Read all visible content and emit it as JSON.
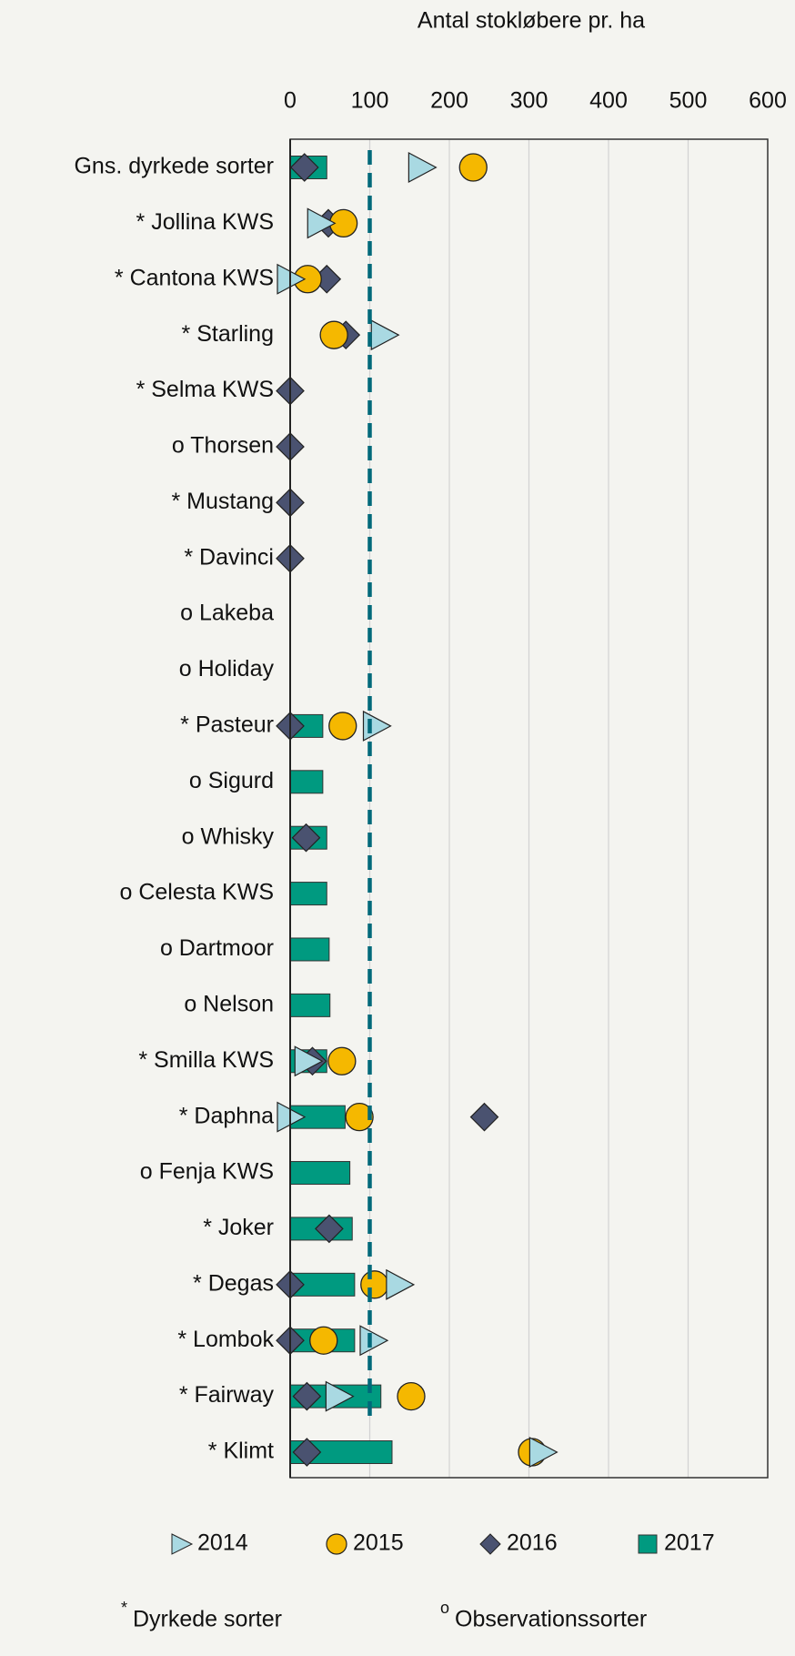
{
  "chart_data": {
    "type": "dot",
    "title": "Antal stokløbere pr. ha",
    "categories": [
      "Gns. dyrkede sorter",
      "* Jollina KWS",
      "* Cantona KWS",
      "* Starling",
      "* Selma KWS",
      "o Thorsen",
      "* Mustang",
      "* Davinci",
      "o Lakeba",
      "o Holiday",
      "* Pasteur",
      "o Sigurd",
      "o Whisky",
      "o Celesta KWS",
      "o Dartmoor",
      "o Nelson",
      "* Smilla KWS",
      "* Daphna",
      "o Fenja KWS",
      "* Joker",
      "* Degas",
      "* Lombok",
      "* Fairway",
      "* Klimt"
    ],
    "series": [
      {
        "name": "2014",
        "marker": "triangle",
        "color": "#a9d9e2",
        "values": [
          165,
          38,
          0,
          118,
          null,
          null,
          null,
          null,
          null,
          null,
          108,
          null,
          null,
          null,
          null,
          null,
          22,
          0,
          null,
          null,
          137,
          104,
          61,
          317
        ]
      },
      {
        "name": "2015",
        "marker": "circle",
        "color": "#f5b800",
        "values": [
          230,
          67,
          22,
          55,
          null,
          null,
          null,
          null,
          null,
          null,
          66,
          null,
          null,
          null,
          null,
          null,
          65,
          87,
          null,
          null,
          106,
          42,
          152,
          304
        ]
      },
      {
        "name": "2016",
        "marker": "diamond",
        "color": "#4a5270",
        "values": [
          18,
          48,
          46,
          70,
          0,
          0,
          0,
          0,
          null,
          null,
          0,
          null,
          20,
          null,
          null,
          null,
          28,
          244,
          null,
          49,
          0,
          0,
          21,
          21
        ]
      },
      {
        "name": "2017",
        "marker": "bar",
        "color": "#009a80",
        "values": [
          46,
          null,
          null,
          null,
          null,
          null,
          null,
          null,
          null,
          null,
          41,
          41,
          46,
          46,
          49,
          50,
          46,
          69,
          75,
          78,
          81,
          81,
          114,
          128
        ]
      }
    ],
    "xlim": [
      0,
      600
    ],
    "xticks": [
      0,
      100,
      200,
      300,
      400,
      500,
      600
    ],
    "grid": true,
    "reference_x": 100,
    "reference_color": "#00697a",
    "legend": "bottom",
    "footnotes": [
      {
        "symbol": "*",
        "text": "Dyrkede sorter"
      },
      {
        "symbol": "o",
        "text": "Observationssorter"
      }
    ]
  }
}
